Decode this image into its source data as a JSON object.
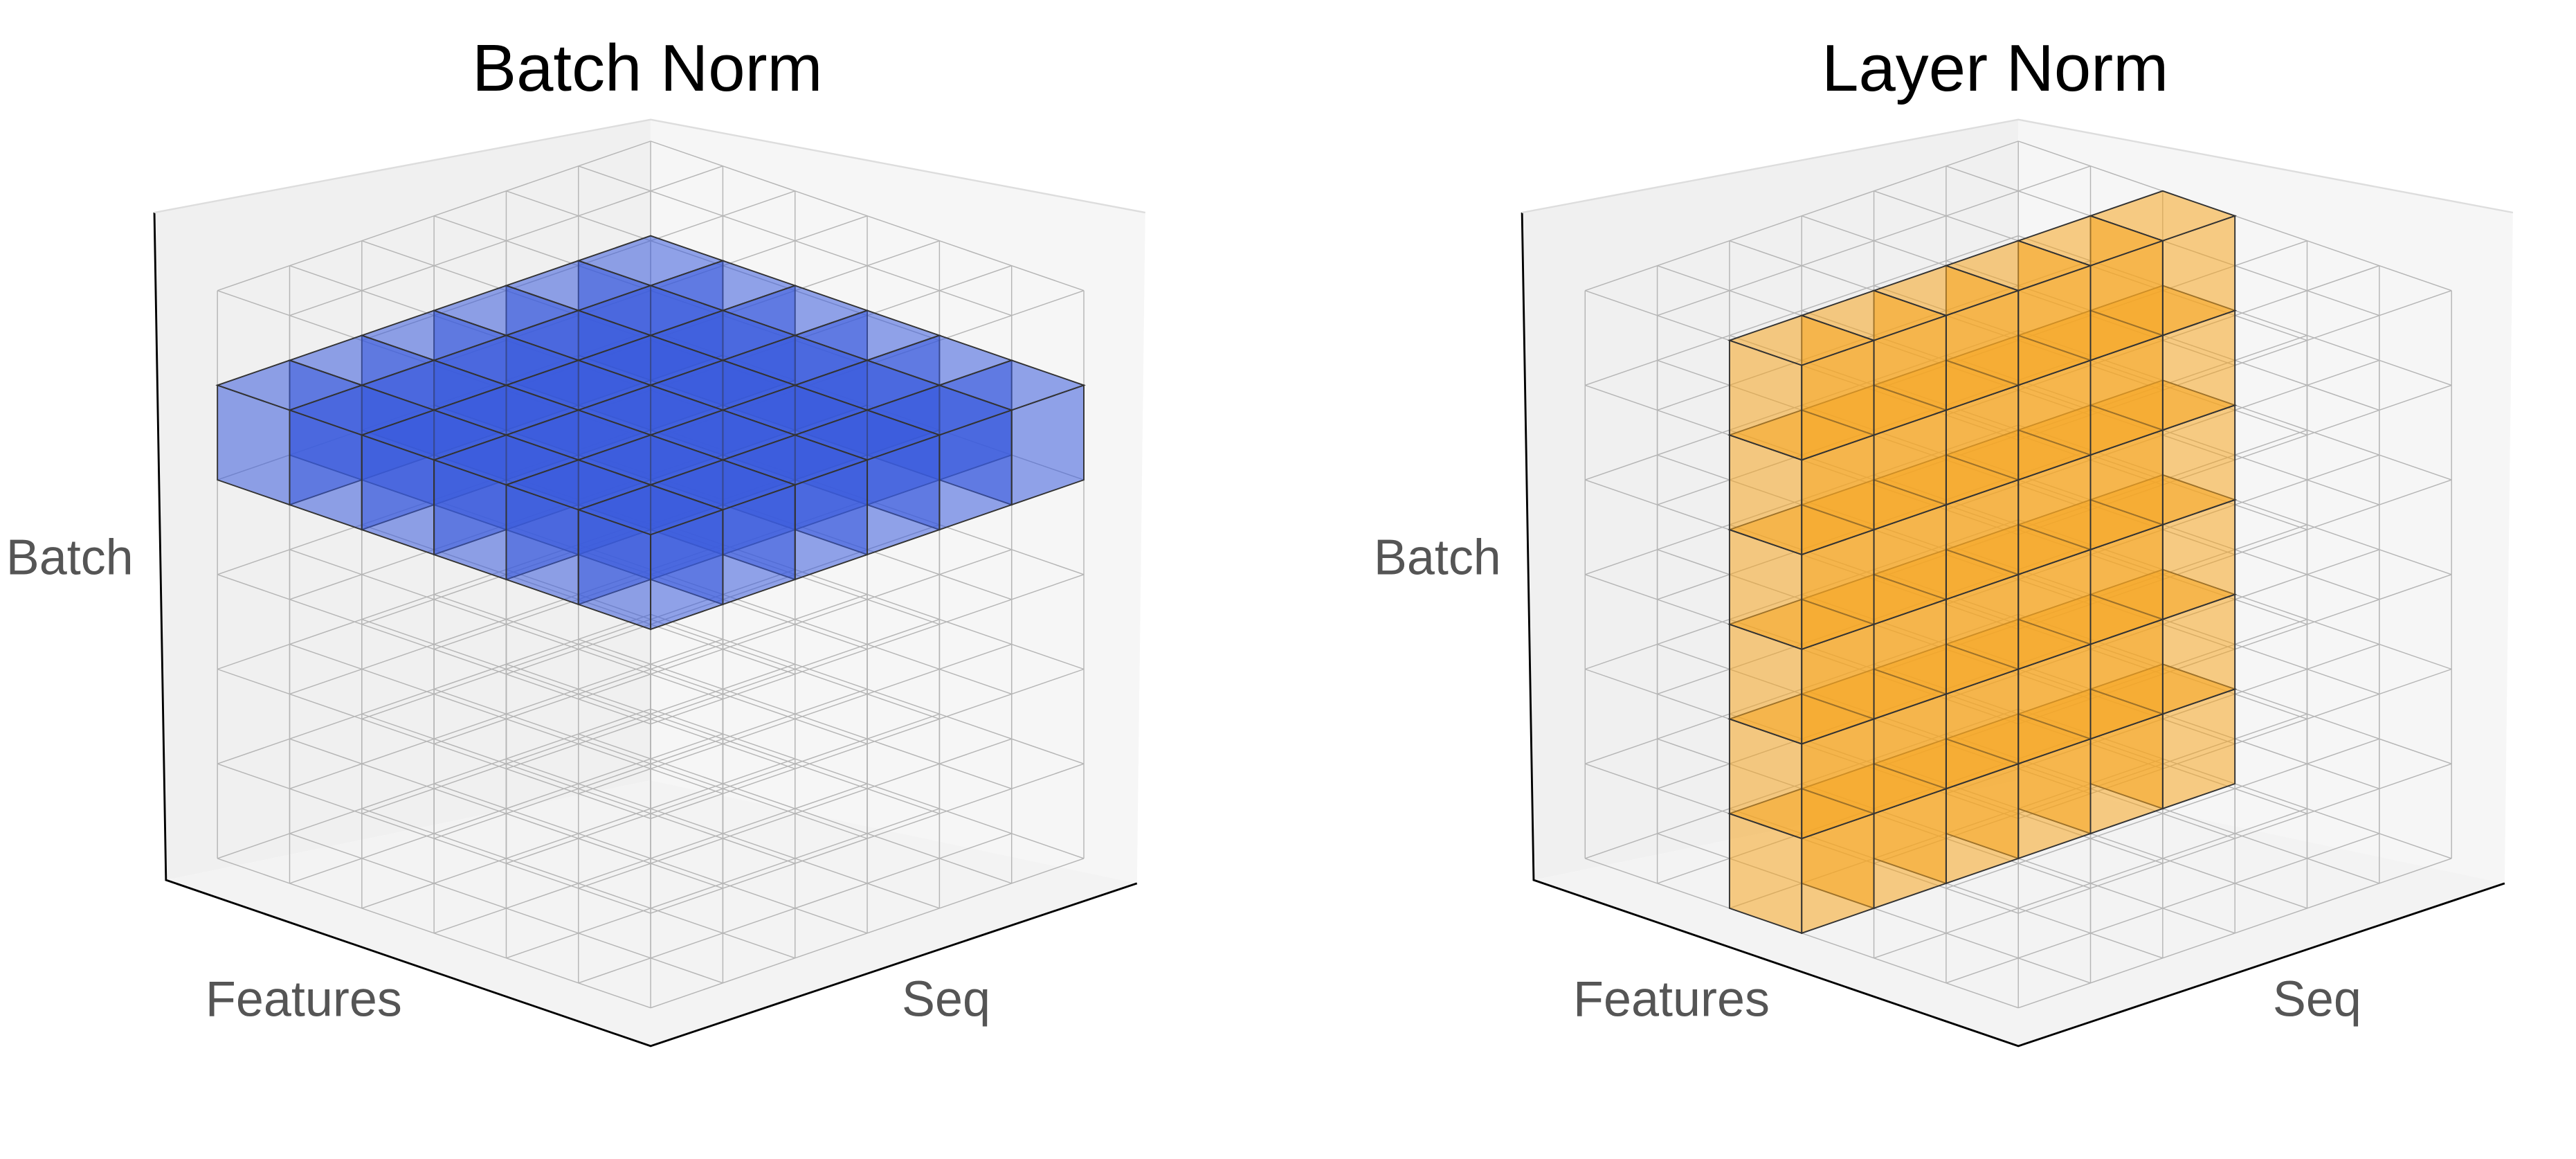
{
  "panels": [
    {
      "title": "Batch Norm",
      "axis_labels": {
        "batch": "Batch",
        "features": "Features",
        "seq": "Seq"
      }
    },
    {
      "title": "Layer Norm",
      "axis_labels": {
        "batch": "Batch",
        "features": "Features",
        "seq": "Seq"
      }
    }
  ]
}
